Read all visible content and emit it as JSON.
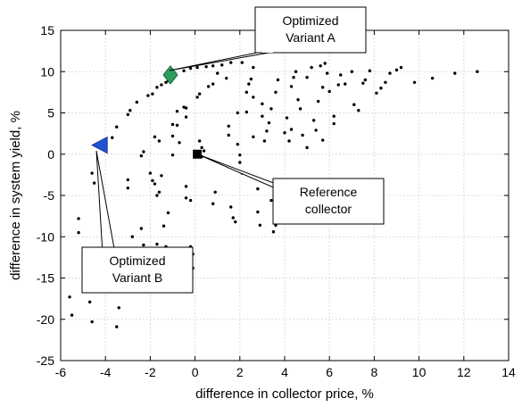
{
  "chart_data": {
    "type": "scatter",
    "xlabel": "difference in collector price, %",
    "ylabel": "difference in system yield, %",
    "xlim": [
      -6,
      14
    ],
    "ylim": [
      -25,
      15
    ],
    "xticks": [
      -6,
      -4,
      -2,
      0,
      2,
      4,
      6,
      8,
      10,
      12,
      14
    ],
    "yticks": [
      -25,
      -20,
      -15,
      -10,
      -5,
      0,
      5,
      10,
      15
    ],
    "grid": true,
    "marker_color": "#000000",
    "series": [
      {
        "values": [
          [
            -5.5,
            -19.5
          ],
          [
            -5.6,
            -17.3
          ],
          [
            -5.2,
            -7.8
          ],
          [
            -5.2,
            -9.5
          ],
          [
            -4.6,
            -20.3
          ],
          [
            -4.7,
            -17.9
          ],
          [
            -4.6,
            -2.3
          ],
          [
            -4.5,
            -3.5
          ],
          [
            -4.1,
            0.6
          ],
          [
            -3.7,
            2.0
          ],
          [
            -3.5,
            3.3
          ],
          [
            -3.4,
            -18.6
          ],
          [
            -3.5,
            -20.9
          ],
          [
            -3.0,
            4.8
          ],
          [
            -2.9,
            5.3
          ],
          [
            -3.0,
            -3.1
          ],
          [
            -3.0,
            -4.1
          ],
          [
            -2.6,
            6.3
          ],
          [
            -2.8,
            -10.0
          ],
          [
            -2.4,
            -9.0
          ],
          [
            -2.3,
            -11.0
          ],
          [
            -2.1,
            7.1
          ],
          [
            -1.9,
            7.3
          ],
          [
            -1.8,
            2.1
          ],
          [
            -1.7,
            8.1
          ],
          [
            -1.6,
            1.6
          ],
          [
            -1.5,
            8.4
          ],
          [
            -1.3,
            8.7
          ],
          [
            -1.2,
            8.9
          ],
          [
            -0.9,
            9.8
          ],
          [
            -0.5,
            10.1
          ],
          [
            -0.2,
            10.4
          ],
          [
            0.1,
            10.5
          ],
          [
            0.5,
            10.6
          ],
          [
            0.8,
            10.7
          ],
          [
            1.2,
            10.8
          ],
          [
            1.6,
            11.1
          ],
          [
            2.1,
            11.1
          ],
          [
            -2.4,
            -0.2
          ],
          [
            -2.3,
            0.3
          ],
          [
            -2.0,
            -2.3
          ],
          [
            -1.9,
            -3.2
          ],
          [
            -1.8,
            -3.6
          ],
          [
            -1.7,
            -5.0
          ],
          [
            -1.6,
            -4.6
          ],
          [
            -1.5,
            -2.6
          ],
          [
            -1.3,
            -11.2
          ],
          [
            -1.2,
            -12.2
          ],
          [
            -1.7,
            -10.9
          ],
          [
            -1.4,
            -8.7
          ],
          [
            -1.2,
            -7.1
          ],
          [
            -1.0,
            3.6
          ],
          [
            -1.0,
            2.2
          ],
          [
            -1.0,
            -0.1
          ],
          [
            -0.8,
            5.2
          ],
          [
            -0.8,
            3.5
          ],
          [
            -0.7,
            1.4
          ],
          [
            -0.5,
            5.7
          ],
          [
            -0.4,
            5.6
          ],
          [
            -0.4,
            4.5
          ],
          [
            -0.4,
            -3.9
          ],
          [
            -0.4,
            -5.3
          ],
          [
            -0.2,
            -5.6
          ],
          [
            -0.2,
            -11.2
          ],
          [
            -0.1,
            -12.1
          ],
          [
            -0.1,
            -13.8
          ],
          [
            -0.2,
            -11.5
          ],
          [
            0.1,
            6.9
          ],
          [
            0.2,
            7.3
          ],
          [
            0.2,
            1.6
          ],
          [
            0.3,
            0.8
          ],
          [
            0.3,
            -0.3
          ],
          [
            0.4,
            0.4
          ],
          [
            0.6,
            8.2
          ],
          [
            0.8,
            8.5
          ],
          [
            0.9,
            -4.6
          ],
          [
            0.8,
            -6.0
          ],
          [
            1.0,
            9.8
          ],
          [
            1.4,
            9.2
          ],
          [
            1.5,
            3.4
          ],
          [
            1.5,
            2.3
          ],
          [
            1.6,
            -6.4
          ],
          [
            1.7,
            -7.7
          ],
          [
            1.8,
            -8.2
          ],
          [
            1.9,
            5.0
          ],
          [
            1.9,
            1.2
          ],
          [
            2.0,
            -0.1
          ],
          [
            2.0,
            -1.0
          ],
          [
            2.1,
            -2.3
          ],
          [
            2.3,
            5.1
          ],
          [
            2.3,
            7.5
          ],
          [
            2.4,
            8.5
          ],
          [
            2.5,
            9.1
          ],
          [
            2.6,
            10.5
          ],
          [
            2.6,
            2.1
          ],
          [
            2.6,
            6.9
          ],
          [
            2.8,
            -4.2
          ],
          [
            2.8,
            -7.0
          ],
          [
            2.9,
            -8.6
          ],
          [
            3.0,
            4.6
          ],
          [
            3.0,
            6.1
          ],
          [
            3.1,
            1.6
          ],
          [
            3.2,
            2.8
          ],
          [
            3.3,
            3.8
          ],
          [
            3.4,
            5.5
          ],
          [
            3.6,
            7.5
          ],
          [
            3.7,
            9.0
          ],
          [
            3.4,
            -5.6
          ],
          [
            3.5,
            -9.4
          ],
          [
            3.6,
            -8.6
          ],
          [
            3.8,
            -5.5
          ],
          [
            4.0,
            2.6
          ],
          [
            4.1,
            4.4
          ],
          [
            4.2,
            1.6
          ],
          [
            4.3,
            3.0
          ],
          [
            4.3,
            8.2
          ],
          [
            4.4,
            9.3
          ],
          [
            4.5,
            10.0
          ],
          [
            4.6,
            6.6
          ],
          [
            4.7,
            5.5
          ],
          [
            4.8,
            2.3
          ],
          [
            5.0,
            9.3
          ],
          [
            5.0,
            0.8
          ],
          [
            5.2,
            10.5
          ],
          [
            5.3,
            4.1
          ],
          [
            5.4,
            2.9
          ],
          [
            5.5,
            6.4
          ],
          [
            5.6,
            10.7
          ],
          [
            5.7,
            8.1
          ],
          [
            5.7,
            1.7
          ],
          [
            5.8,
            11.0
          ],
          [
            5.9,
            9.8
          ],
          [
            6.0,
            7.6
          ],
          [
            6.2,
            4.6
          ],
          [
            6.2,
            3.7
          ],
          [
            6.4,
            8.4
          ],
          [
            6.5,
            9.6
          ],
          [
            6.7,
            8.5
          ],
          [
            7.0,
            10.0
          ],
          [
            7.1,
            6.0
          ],
          [
            7.3,
            5.3
          ],
          [
            7.5,
            8.6
          ],
          [
            7.6,
            9.0
          ],
          [
            7.8,
            10.1
          ],
          [
            8.1,
            7.4
          ],
          [
            8.3,
            8.0
          ],
          [
            8.5,
            8.7
          ],
          [
            8.7,
            9.8
          ],
          [
            9.0,
            10.2
          ],
          [
            9.2,
            10.5
          ],
          [
            9.8,
            8.7
          ],
          [
            10.6,
            9.2
          ],
          [
            11.6,
            9.8
          ],
          [
            12.6,
            10.0
          ]
        ]
      }
    ],
    "highlighted": [
      {
        "name": "Optimized Variant A",
        "x": -1.1,
        "y": 9.6,
        "marker": "diamond",
        "color": "#2e9c5e"
      },
      {
        "name": "Optimized Variant B",
        "x": -4.2,
        "y": 1.1,
        "marker": "triangle-left",
        "color": "#1f52d1"
      },
      {
        "name": "Reference collector",
        "x": 0.1,
        "y": 0.0,
        "marker": "square",
        "color": "#000000"
      }
    ],
    "annotations": [
      {
        "target": "Optimized Variant A",
        "lines": [
          "Optimized",
          "Variant A"
        ]
      },
      {
        "target": "Reference collector",
        "lines": [
          "Reference",
          "collector"
        ]
      },
      {
        "target": "Optimized Variant B",
        "lines": [
          "Optimized",
          "Variant B"
        ]
      }
    ]
  }
}
